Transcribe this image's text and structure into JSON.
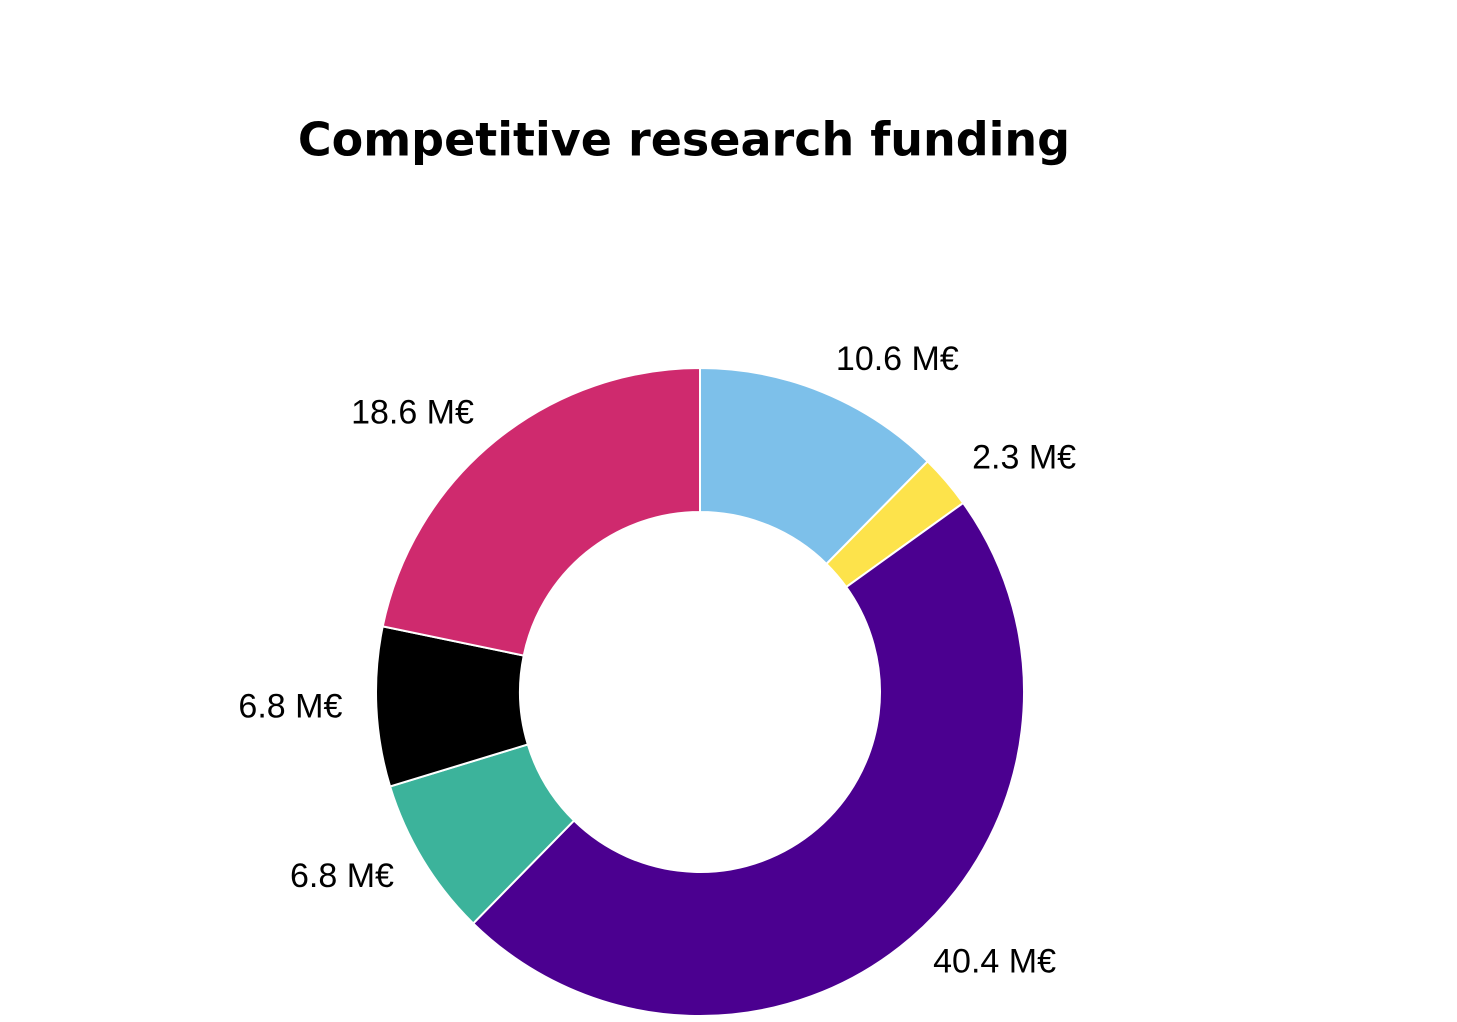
{
  "chart_data": {
    "type": "donut",
    "title": "Competitive research funding",
    "values": [
      10.6,
      2.3,
      40.4,
      6.8,
      6.8,
      18.6
    ],
    "value_labels": [
      "10.6 M€",
      "2.3 M€",
      "40.4 M€",
      "6.8 M€",
      "6.8 M€",
      "18.6 M€"
    ],
    "colors": [
      "#7dc0ea",
      "#fde34b",
      "#4b0090",
      "#3cb39b",
      "#000000",
      "#cf2a6e"
    ]
  }
}
